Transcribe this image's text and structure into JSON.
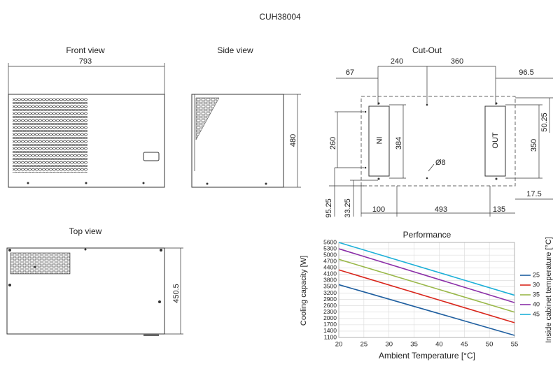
{
  "title": "CUH38004",
  "views": {
    "front": "Front view",
    "side": "Side view",
    "cutout": "Cut-Out",
    "top": "Top view"
  },
  "dimensions": {
    "front_width": "793",
    "side_height": "480",
    "top_depth": "450.5",
    "cutout": [
      "67",
      "240",
      "360",
      "96.5",
      "260",
      "384",
      "350",
      "50.25",
      "Ø8",
      "95.25",
      "33.25",
      "100",
      "493",
      "135",
      "17.5"
    ],
    "in": "IN",
    "out": "OUT"
  },
  "chart_data": {
    "type": "line",
    "title": "Performance",
    "xlabel": "Ambient Temperature [°C]",
    "ylabel": "Cooling capacity  [W]",
    "legend_title": "Inside cabinet temperature [°C]",
    "legend": "right",
    "grid": true,
    "x": [
      20,
      55
    ],
    "xlim": [
      20,
      55
    ],
    "xticks": [
      20,
      25,
      30,
      35,
      40,
      45,
      50,
      55
    ],
    "ylim": [
      1100,
      5600
    ],
    "yticks": [
      1100,
      1400,
      1700,
      2000,
      2300,
      2600,
      2900,
      3200,
      3500,
      3800,
      4100,
      4400,
      4700,
      5000,
      5300,
      5600
    ],
    "series": [
      {
        "name": "25",
        "color": "#1f5fa0",
        "values": [
          3600,
          1200
        ]
      },
      {
        "name": "30",
        "color": "#d9261c",
        "values": [
          4300,
          1800
        ]
      },
      {
        "name": "35",
        "color": "#9ab84a",
        "values": [
          4800,
          2300
        ]
      },
      {
        "name": "40",
        "color": "#8b2fa8",
        "values": [
          5300,
          2750
        ]
      },
      {
        "name": "45",
        "color": "#1eb0d8",
        "values": [
          5600,
          3100
        ]
      }
    ]
  }
}
